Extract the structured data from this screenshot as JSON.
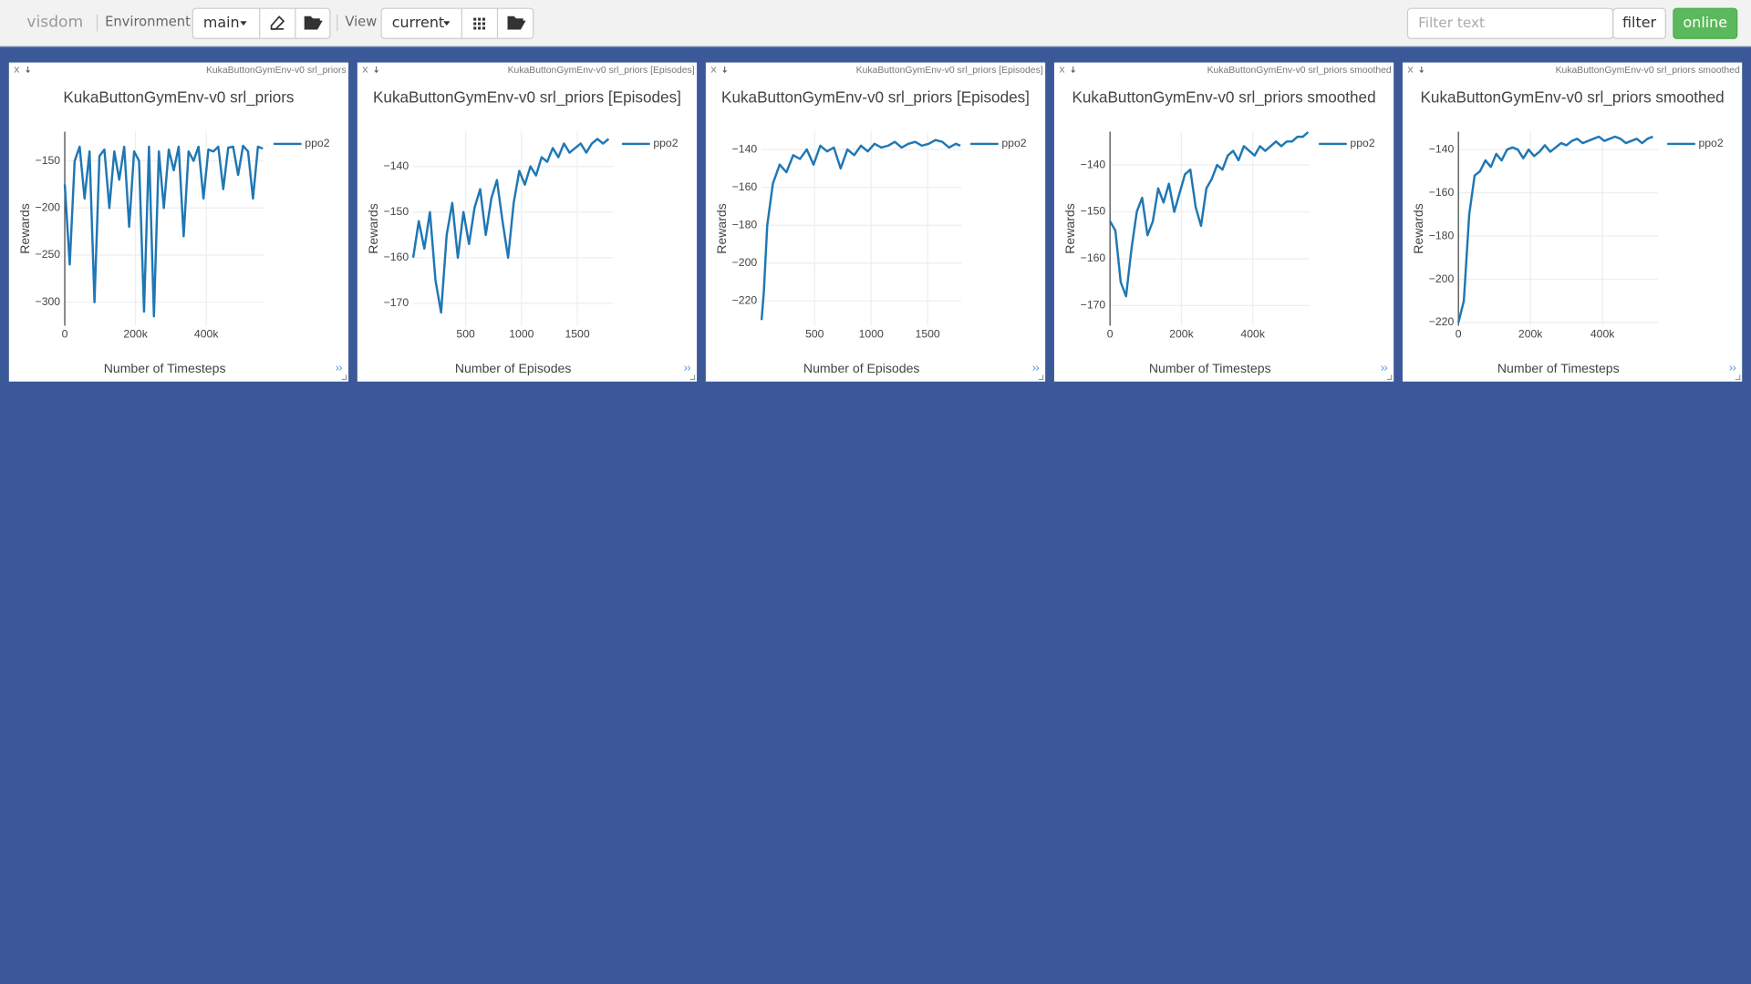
{
  "header": {
    "brand": "visdom",
    "environment_label": "Environment",
    "environment": "main",
    "view_label": "View",
    "view": "current",
    "filter_placeholder": "Filter text",
    "filter_button": "filter",
    "status": "online"
  },
  "chart_data": [
    {
      "type": "line",
      "window_title": "KukaButtonGymEnv-v0 srl_priors",
      "title": "KukaButtonGymEnv-v0 srl_priors",
      "x_label": "Number of Timesteps",
      "y_label": "Rewards",
      "x": [
        0,
        14000,
        28000,
        42000,
        56000,
        70000,
        84000,
        98000,
        112000,
        126000,
        140000,
        154000,
        168000,
        182000,
        196000,
        210000,
        224000,
        238000,
        252000,
        266000,
        280000,
        294000,
        308000,
        322000,
        336000,
        350000,
        364000,
        378000,
        392000,
        406000,
        420000,
        434000,
        448000,
        462000,
        476000,
        490000,
        504000,
        518000,
        532000,
        546000,
        560000
      ],
      "series": [
        {
          "name": "ppo2",
          "color": "#1f77b4",
          "values": [
            -175,
            -260,
            -150,
            -135,
            -190,
            -140,
            -300,
            -145,
            -138,
            -200,
            -140,
            -170,
            -135,
            -220,
            -140,
            -150,
            -310,
            -135,
            -315,
            -140,
            -200,
            -138,
            -160,
            -135,
            -230,
            -140,
            -150,
            -135,
            -190,
            -138,
            -140,
            -135,
            -180,
            -136,
            -135,
            -165,
            -134,
            -140,
            -190,
            -135,
            -137
          ]
        }
      ],
      "xlim": [
        0,
        565000
      ],
      "ylim": [
        -325,
        -119
      ],
      "xticks": [
        0,
        {
          "value": 200000,
          "label": "200k"
        },
        {
          "value": 400000,
          "label": "400k"
        }
      ],
      "yticks": [
        {
          "value": -150,
          "label": "−150"
        },
        {
          "value": -200,
          "label": "−200"
        },
        {
          "value": -250,
          "label": "−250"
        },
        {
          "value": -300,
          "label": "−300"
        }
      ],
      "grid": true
    },
    {
      "type": "line",
      "window_title": "KukaButtonGymEnv-v0 srl_priors [Episodes]",
      "title": "KukaButtonGymEnv-v0 srl_priors [Episodes]",
      "x_label": "Number of Episodes",
      "y_label": "Rewards",
      "x": [
        30,
        80,
        130,
        180,
        230,
        280,
        330,
        380,
        430,
        480,
        530,
        580,
        630,
        680,
        730,
        780,
        830,
        880,
        930,
        980,
        1030,
        1080,
        1130,
        1180,
        1230,
        1280,
        1330,
        1380,
        1430,
        1480,
        1530,
        1580,
        1630,
        1680,
        1730,
        1780
      ],
      "series": [
        {
          "name": "ppo2",
          "color": "#1f77b4",
          "values": [
            -160,
            -152,
            -158,
            -150,
            -165,
            -172,
            -155,
            -148,
            -160,
            -150,
            -157,
            -149,
            -145,
            -155,
            -147,
            -143,
            -152,
            -160,
            -148,
            -141,
            -144,
            -140,
            -142,
            -138,
            -139,
            -136,
            -138,
            -135,
            -137,
            -136,
            -135,
            -137,
            -135,
            -134,
            -135,
            -134
          ]
        }
      ],
      "xlim": [
        30,
        1820
      ],
      "ylim": [
        -174.9,
        -132.4
      ],
      "xticks": [
        500,
        1000,
        1500
      ],
      "yticks": [
        {
          "value": -140,
          "label": "−140"
        },
        {
          "value": -150,
          "label": "−150"
        },
        {
          "value": -160,
          "label": "−160"
        },
        {
          "value": -170,
          "label": "−170"
        }
      ],
      "grid": true
    },
    {
      "type": "line",
      "window_title": "KukaButtonGymEnv-v0 srl_priors [Episodes]",
      "title": "KukaButtonGymEnv-v0 srl_priors [Episodes]",
      "x_label": "Number of Episodes",
      "y_label": "Rewards",
      "x": [
        30,
        50,
        80,
        130,
        190,
        250,
        310,
        370,
        430,
        490,
        550,
        610,
        670,
        730,
        790,
        850,
        910,
        970,
        1030,
        1090,
        1150,
        1210,
        1270,
        1330,
        1390,
        1450,
        1510,
        1570,
        1630,
        1690,
        1750,
        1790
      ],
      "series": [
        {
          "name": "ppo2",
          "color": "#1f77b4",
          "values": [
            -230,
            -215,
            -180,
            -158,
            -148,
            -152,
            -143,
            -145,
            -140,
            -148,
            -138,
            -141,
            -139,
            -150,
            -140,
            -143,
            -138,
            -141,
            -137,
            -139,
            -138,
            -136,
            -139,
            -137,
            -136,
            -138,
            -137,
            -135,
            -136,
            -139,
            -137,
            -138
          ]
        }
      ],
      "xlim": [
        30,
        1800
      ],
      "ylim": [
        -233,
        -130.6
      ],
      "xticks": [
        500,
        1000,
        1500
      ],
      "yticks": [
        {
          "value": -140,
          "label": "−140"
        },
        {
          "value": -160,
          "label": "−160"
        },
        {
          "value": -180,
          "label": "−180"
        },
        {
          "value": -200,
          "label": "−200"
        },
        {
          "value": -220,
          "label": "−220"
        }
      ],
      "grid": true
    },
    {
      "type": "line",
      "window_title": "KukaButtonGymEnv-v0 srl_priors smoothed",
      "title": "KukaButtonGymEnv-v0 srl_priors smoothed",
      "x_label": "Number of Timesteps",
      "y_label": "Rewards",
      "x": [
        0,
        15000,
        30000,
        45000,
        60000,
        75000,
        90000,
        105000,
        120000,
        135000,
        150000,
        165000,
        180000,
        195000,
        210000,
        225000,
        240000,
        255000,
        270000,
        285000,
        300000,
        315000,
        330000,
        345000,
        360000,
        375000,
        390000,
        405000,
        420000,
        435000,
        450000,
        465000,
        480000,
        495000,
        510000,
        525000,
        540000,
        555000
      ],
      "series": [
        {
          "name": "ppo2",
          "color": "#1f77b4",
          "values": [
            -152,
            -154,
            -165,
            -168,
            -158,
            -150,
            -147,
            -155,
            -152,
            -145,
            -148,
            -144,
            -150,
            -146,
            -142,
            -141,
            -149,
            -153,
            -145,
            -143,
            -140,
            -141,
            -138,
            -137,
            -139,
            -136,
            -137,
            -138,
            -136,
            -137,
            -136,
            -135,
            -136,
            -135,
            -135,
            -134,
            -134,
            -133
          ]
        }
      ],
      "xlim": [
        0,
        560000
      ],
      "ylim": [
        -174.3,
        -132.9
      ],
      "xticks": [
        0,
        {
          "value": 200000,
          "label": "200k"
        },
        {
          "value": 400000,
          "label": "400k"
        }
      ],
      "yticks": [
        {
          "value": -140,
          "label": "−140"
        },
        {
          "value": -150,
          "label": "−150"
        },
        {
          "value": -160,
          "label": "−160"
        },
        {
          "value": -170,
          "label": "−170"
        }
      ],
      "grid": true
    },
    {
      "type": "line",
      "window_title": "KukaButtonGymEnv-v0 srl_priors smoothed",
      "title": "KukaButtonGymEnv-v0 srl_priors smoothed",
      "x_label": "Number of Timesteps",
      "y_label": "Rewards",
      "x": [
        0,
        15000,
        30000,
        45000,
        60000,
        75000,
        90000,
        105000,
        120000,
        135000,
        150000,
        165000,
        180000,
        195000,
        210000,
        225000,
        240000,
        255000,
        270000,
        285000,
        300000,
        315000,
        330000,
        345000,
        360000,
        375000,
        390000,
        405000,
        420000,
        435000,
        450000,
        465000,
        480000,
        495000,
        510000,
        525000,
        540000
      ],
      "series": [
        {
          "name": "ppo2",
          "color": "#1f77b4",
          "values": [
            -220,
            -210,
            -170,
            -152,
            -150,
            -145,
            -148,
            -142,
            -145,
            -140,
            -139,
            -140,
            -144,
            -140,
            -143,
            -141,
            -138,
            -141,
            -139,
            -137,
            -138,
            -136,
            -135,
            -137,
            -136,
            -135,
            -134,
            -136,
            -135,
            -134,
            -135,
            -137,
            -136,
            -135,
            -137,
            -135,
            -134
          ]
        }
      ],
      "xlim": [
        0,
        555000
      ],
      "ylim": [
        -221.5,
        -131.7
      ],
      "xticks": [
        0,
        {
          "value": 200000,
          "label": "200k"
        },
        {
          "value": 400000,
          "label": "400k"
        }
      ],
      "yticks": [
        {
          "value": -140,
          "label": "−140"
        },
        {
          "value": -160,
          "label": "−160"
        },
        {
          "value": -180,
          "label": "−180"
        },
        {
          "value": -200,
          "label": "−200"
        },
        {
          "value": -220,
          "label": "−220"
        }
      ],
      "grid": true
    }
  ]
}
